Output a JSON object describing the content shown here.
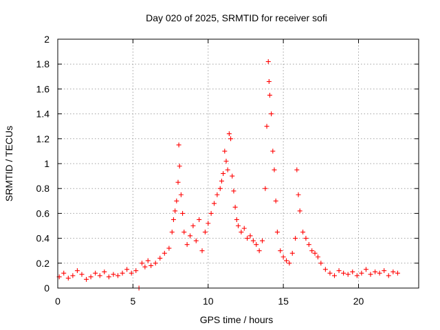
{
  "chart_data": {
    "type": "scatter",
    "title": "Day 020 of 2025, SRMTID for receiver sofi",
    "xlabel": "GPS time / hours",
    "ylabel": "SRMTID / TECUs",
    "xlim": [
      0,
      24
    ],
    "ylim": [
      0,
      2
    ],
    "x_ticks": [
      0,
      5,
      10,
      15,
      20
    ],
    "x_tick_labels": [
      "0",
      "5",
      "10",
      "15",
      "20"
    ],
    "y_ticks": [
      0,
      0.2,
      0.4,
      0.6,
      0.8,
      1,
      1.2,
      1.4,
      1.6,
      1.8,
      2
    ],
    "y_tick_labels": [
      "0",
      "0.2",
      "0.4",
      "0.6",
      "0.8",
      "1",
      "1.2",
      "1.4",
      "1.6",
      "1.8",
      "2"
    ],
    "grid": true,
    "marker": "+",
    "marker_color": "#ff0000",
    "series": [
      {
        "name": "SRMTID",
        "x": [
          0.1,
          0.4,
          0.7,
          1.0,
          1.3,
          1.6,
          1.9,
          2.2,
          2.5,
          2.8,
          3.1,
          3.4,
          3.7,
          4.0,
          4.3,
          4.6,
          4.9,
          5.2,
          5.4,
          5.6,
          5.8,
          6.0,
          6.2,
          6.5,
          6.8,
          7.1,
          7.4,
          7.6,
          7.7,
          7.8,
          7.9,
          8.0,
          8.05,
          8.1,
          8.2,
          8.3,
          8.4,
          8.6,
          8.8,
          9.0,
          9.2,
          9.4,
          9.6,
          9.8,
          10.0,
          10.2,
          10.4,
          10.6,
          10.8,
          10.9,
          11.0,
          11.1,
          11.2,
          11.3,
          11.4,
          11.5,
          11.6,
          11.7,
          11.8,
          11.9,
          12.0,
          12.2,
          12.4,
          12.6,
          12.8,
          13.0,
          13.2,
          13.4,
          13.6,
          13.8,
          13.9,
          14.0,
          14.05,
          14.1,
          14.2,
          14.3,
          14.4,
          14.5,
          14.6,
          14.8,
          15.0,
          15.2,
          15.4,
          15.6,
          15.8,
          15.9,
          16.0,
          16.1,
          16.3,
          16.5,
          16.7,
          16.9,
          17.1,
          17.3,
          17.5,
          17.8,
          18.1,
          18.4,
          18.7,
          19.0,
          19.3,
          19.6,
          19.9,
          20.2,
          20.5,
          20.8,
          21.1,
          21.4,
          21.7,
          22.0,
          22.3,
          22.6
        ],
        "y": [
          0.09,
          0.12,
          0.08,
          0.1,
          0.14,
          0.11,
          0.07,
          0.09,
          0.12,
          0.1,
          0.13,
          0.09,
          0.11,
          0.1,
          0.12,
          0.15,
          0.12,
          0.14,
          0.0,
          0.2,
          0.17,
          0.22,
          0.18,
          0.2,
          0.24,
          0.28,
          0.32,
          0.45,
          0.55,
          0.62,
          0.7,
          0.85,
          1.15,
          0.98,
          0.75,
          0.6,
          0.45,
          0.35,
          0.42,
          0.5,
          0.38,
          0.55,
          0.3,
          0.45,
          0.52,
          0.6,
          0.68,
          0.75,
          0.8,
          0.86,
          0.92,
          1.1,
          1.02,
          0.95,
          1.24,
          1.2,
          0.9,
          0.78,
          0.65,
          0.55,
          0.5,
          0.45,
          0.48,
          0.4,
          0.42,
          0.38,
          0.35,
          0.3,
          0.38,
          0.8,
          1.3,
          1.82,
          1.66,
          1.55,
          1.4,
          1.1,
          0.95,
          0.7,
          0.45,
          0.3,
          0.25,
          0.22,
          0.2,
          0.28,
          0.4,
          0.95,
          0.75,
          0.62,
          0.45,
          0.4,
          0.35,
          0.3,
          0.28,
          0.25,
          0.2,
          0.15,
          0.12,
          0.1,
          0.14,
          0.12,
          0.11,
          0.13,
          0.1,
          0.12,
          0.15,
          0.11,
          0.13,
          0.12,
          0.14,
          0.1,
          0.13,
          0.12
        ]
      }
    ]
  }
}
